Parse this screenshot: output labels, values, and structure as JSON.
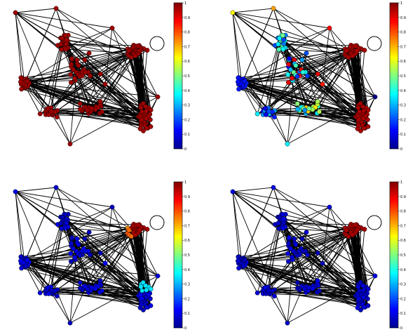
{
  "figure": {
    "panels": [
      {
        "id": "panel-1",
        "scheme": "all-high"
      },
      {
        "id": "panel-2",
        "scheme": "split"
      },
      {
        "id": "panel-3",
        "scheme": "top-right-high"
      },
      {
        "id": "panel-4",
        "scheme": "top-right-high-only"
      }
    ],
    "colorbar": {
      "min": 0,
      "max": 1,
      "ticks": [
        "0",
        "0.1",
        "0.2",
        "0.3",
        "0.4",
        "0.5",
        "0.6",
        "0.7",
        "0.8",
        "0.9",
        "1"
      ],
      "colormap": "jet",
      "colors": [
        "#00008f",
        "#0000ff",
        "#0080ff",
        "#00ffff",
        "#80ff80",
        "#ffff00",
        "#ff8000",
        "#ff0000",
        "#800000"
      ]
    },
    "node_outline": "#000000",
    "edge_color": "#000000"
  }
}
